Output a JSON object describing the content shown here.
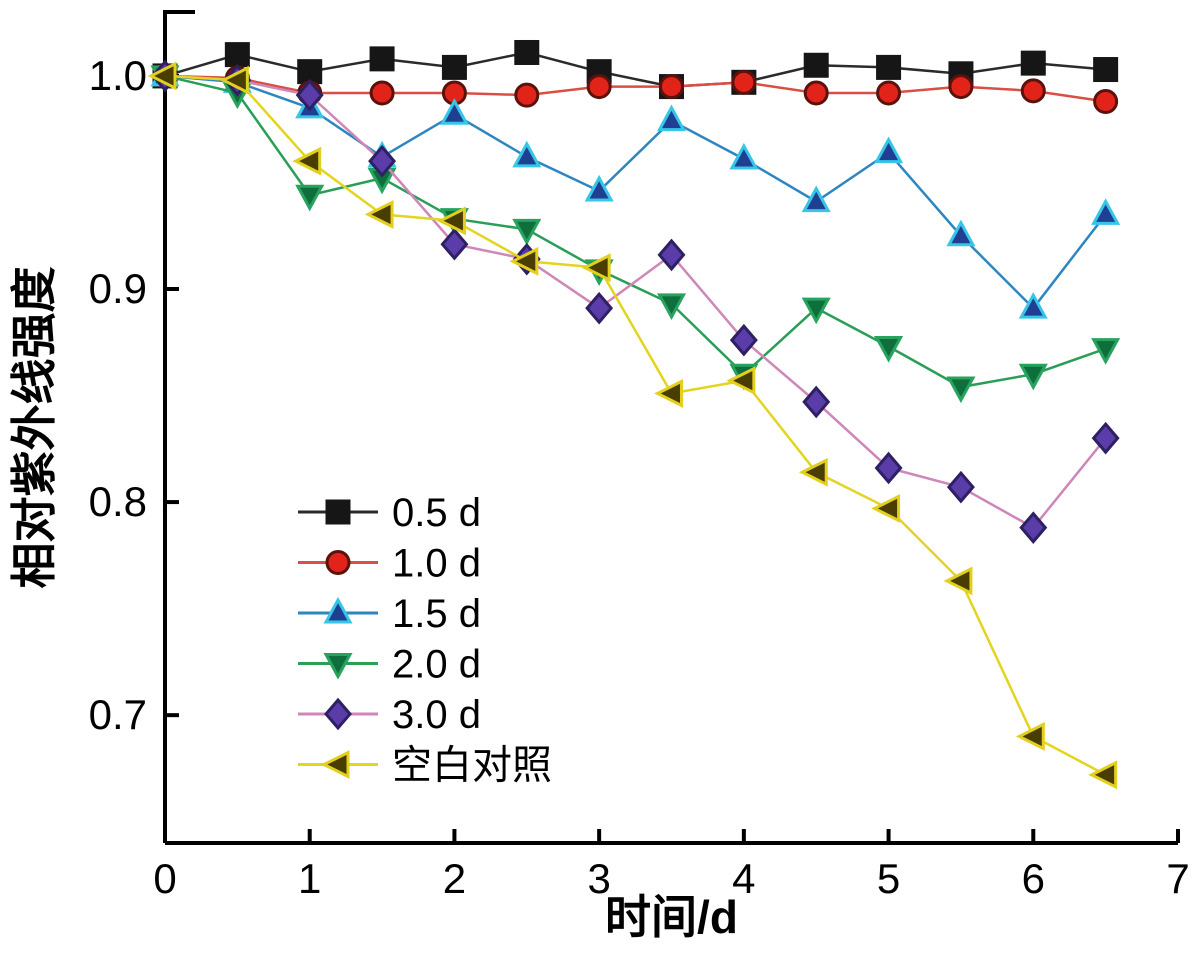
{
  "figure": {
    "background": "#ffffff",
    "axis_color": "#000000",
    "text_color": "#000000"
  },
  "chart_data": {
    "type": "line",
    "title": "",
    "xlabel": "时间/d",
    "ylabel": "相对紫外线强度",
    "xlim": [
      0,
      7
    ],
    "ylim": [
      0.64,
      1.03
    ],
    "xticks": [
      0,
      1,
      2,
      3,
      4,
      5,
      6,
      7
    ],
    "yticks": [
      0.7,
      0.8,
      0.9,
      1.0
    ],
    "grid": false,
    "legend_position": "inside-lower-left",
    "x": [
      0,
      0.5,
      1,
      1.5,
      2,
      2.5,
      3,
      3.5,
      4,
      4.5,
      5,
      5.5,
      6,
      6.5
    ],
    "series": [
      {
        "name": "0.5 d",
        "marker": "square",
        "marker_fill": "#161616",
        "marker_edge": "#161616",
        "line_color": "#2b2b2b",
        "values": [
          1.0,
          1.01,
          1.002,
          1.008,
          1.004,
          1.011,
          1.002,
          0.995,
          0.997,
          1.005,
          1.004,
          1.001,
          1.006,
          1.003
        ]
      },
      {
        "name": "1.0 d",
        "marker": "circle",
        "marker_fill": "#e2231a",
        "marker_edge": "#5c120c",
        "line_color": "#d94f43",
        "values": [
          1.0,
          0.999,
          0.992,
          0.992,
          0.992,
          0.991,
          0.995,
          0.995,
          0.997,
          0.992,
          0.992,
          0.995,
          0.993,
          0.988
        ]
      },
      {
        "name": "1.5 d",
        "marker": "triangle-up",
        "marker_fill": "#1f3f93",
        "marker_edge": "#36c6e8",
        "line_color": "#2e86c1",
        "values": [
          1.0,
          0.997,
          0.985,
          0.962,
          0.982,
          0.962,
          0.946,
          0.979,
          0.961,
          0.941,
          0.964,
          0.925,
          0.891,
          0.935
        ]
      },
      {
        "name": "2.0 d",
        "marker": "triangle-down",
        "marker_fill": "#0e6e3c",
        "marker_edge": "#27a35e",
        "line_color": "#2a9d57",
        "values": [
          1.0,
          0.992,
          0.944,
          0.952,
          0.933,
          0.928,
          0.909,
          0.893,
          0.86,
          0.891,
          0.873,
          0.854,
          0.86,
          0.872
        ]
      },
      {
        "name": "3.0 d",
        "marker": "diamond",
        "marker_fill": "#5a3da8",
        "marker_edge": "#2f1f63",
        "line_color": "#cf86b8",
        "values": [
          1.0,
          0.998,
          0.991,
          0.96,
          0.921,
          0.914,
          0.891,
          0.916,
          0.876,
          0.847,
          0.816,
          0.807,
          0.788,
          0.83
        ]
      },
      {
        "name": "空白对照",
        "marker": "triangle-left",
        "marker_fill": "#4a3d00",
        "marker_edge": "#e3cf1e",
        "line_color": "#e3d41e",
        "values": [
          1.0,
          0.998,
          0.96,
          0.935,
          0.932,
          0.913,
          0.91,
          0.851,
          0.857,
          0.814,
          0.797,
          0.763,
          0.69,
          0.672
        ]
      }
    ]
  }
}
